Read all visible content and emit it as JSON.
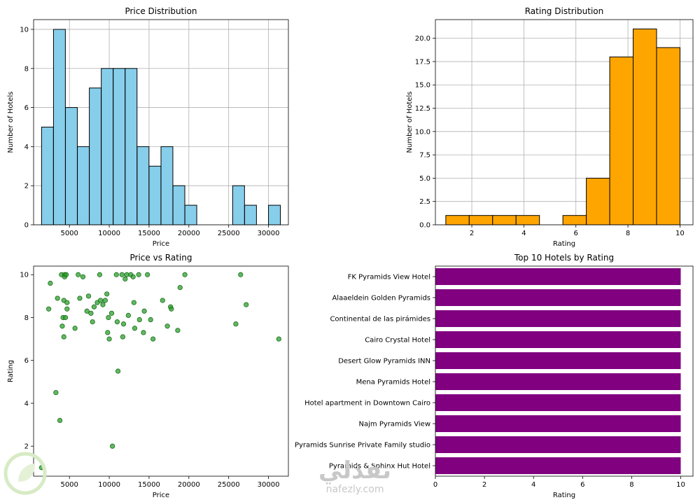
{
  "charts": [
    {
      "id": "price_hist",
      "type": "bar",
      "title": "Price Distribution",
      "xlabel": "Price",
      "ylabel": "Number of Hotels",
      "color": "#87ceeb",
      "xlim": [
        500,
        32500
      ],
      "ylim": [
        0,
        10.5
      ],
      "xticks": [
        5000,
        10000,
        15000,
        20000,
        25000,
        30000
      ],
      "yticks": [
        0,
        2,
        4,
        6,
        8,
        10
      ],
      "bin_width": 1490,
      "bins": [
        {
          "x0": 1500,
          "value": 5
        },
        {
          "x0": 3000,
          "value": 10
        },
        {
          "x0": 4500,
          "value": 6
        },
        {
          "x0": 6000,
          "value": 4
        },
        {
          "x0": 7500,
          "value": 7
        },
        {
          "x0": 9000,
          "value": 8
        },
        {
          "x0": 10500,
          "value": 8
        },
        {
          "x0": 12000,
          "value": 8
        },
        {
          "x0": 13500,
          "value": 4
        },
        {
          "x0": 15000,
          "value": 3
        },
        {
          "x0": 16500,
          "value": 4
        },
        {
          "x0": 18000,
          "value": 2
        },
        {
          "x0": 19500,
          "value": 1
        },
        {
          "x0": 25500,
          "value": 2
        },
        {
          "x0": 27000,
          "value": 1
        },
        {
          "x0": 30000,
          "value": 1
        }
      ]
    },
    {
      "id": "rating_hist",
      "type": "bar",
      "title": "Rating Distribution",
      "xlabel": "Rating",
      "ylabel": "Number of Hotels",
      "color": "#ffa500",
      "xlim": [
        0.6,
        10.5
      ],
      "ylim": [
        0,
        22
      ],
      "xticks": [
        2,
        4,
        6,
        8,
        10
      ],
      "yticks": [
        0.0,
        2.5,
        5.0,
        7.5,
        10.0,
        12.5,
        15.0,
        17.5,
        20.0
      ],
      "ytick_labels": [
        "0.0",
        "2.5",
        "5.0",
        "7.5",
        "10.0",
        "12.5",
        "15.0",
        "17.5",
        "20.0"
      ],
      "bin_width": 0.9,
      "bins": [
        {
          "x0": 1.0,
          "value": 1
        },
        {
          "x0": 1.9,
          "value": 1
        },
        {
          "x0": 2.8,
          "value": 1
        },
        {
          "x0": 3.7,
          "value": 1
        },
        {
          "x0": 4.6,
          "value": 0
        },
        {
          "x0": 5.5,
          "value": 1
        },
        {
          "x0": 6.4,
          "value": 5
        },
        {
          "x0": 7.3,
          "value": 18
        },
        {
          "x0": 8.2,
          "value": 21
        },
        {
          "x0": 9.1,
          "value": 19
        }
      ]
    },
    {
      "id": "price_rating_scatter",
      "type": "scatter",
      "title": "Price vs Rating",
      "xlabel": "Price",
      "ylabel": "Rating",
      "color": "#2ca02c",
      "xlim": [
        500,
        32500
      ],
      "ylim": [
        0.6,
        10.4
      ],
      "xticks": [
        5000,
        10000,
        15000,
        20000,
        25000,
        30000
      ],
      "yticks": [
        2,
        4,
        6,
        8,
        10
      ],
      "points": [
        [
          1500,
          1.0
        ],
        [
          2400,
          8.4
        ],
        [
          2600,
          9.6
        ],
        [
          3300,
          4.5
        ],
        [
          3500,
          8.9
        ],
        [
          3800,
          3.2
        ],
        [
          4000,
          10.0
        ],
        [
          4100,
          7.6
        ],
        [
          4200,
          8.0
        ],
        [
          4300,
          8.8
        ],
        [
          4300,
          7.1
        ],
        [
          4400,
          10.0
        ],
        [
          4400,
          9.9
        ],
        [
          4500,
          8.0
        ],
        [
          4600,
          10.0
        ],
        [
          4700,
          8.4
        ],
        [
          4700,
          8.7
        ],
        [
          5700,
          7.5
        ],
        [
          6100,
          10.0
        ],
        [
          6300,
          8.9
        ],
        [
          6700,
          9.9
        ],
        [
          7200,
          8.3
        ],
        [
          7400,
          9.0
        ],
        [
          7700,
          8.2
        ],
        [
          7900,
          7.8
        ],
        [
          8100,
          8.5
        ],
        [
          8500,
          8.7
        ],
        [
          8800,
          10.0
        ],
        [
          8900,
          8.8
        ],
        [
          9200,
          8.6
        ],
        [
          9500,
          8.8
        ],
        [
          9700,
          9.1
        ],
        [
          9800,
          7.3
        ],
        [
          9900,
          8.0
        ],
        [
          10000,
          7.0
        ],
        [
          10300,
          8.2
        ],
        [
          10400,
          2.0
        ],
        [
          10900,
          10.0
        ],
        [
          11000,
          7.8
        ],
        [
          11100,
          5.5
        ],
        [
          11600,
          10.0
        ],
        [
          11700,
          7.1
        ],
        [
          11800,
          7.7
        ],
        [
          12000,
          9.8
        ],
        [
          12200,
          10.0
        ],
        [
          12400,
          8.1
        ],
        [
          12700,
          10.0
        ],
        [
          13000,
          9.9
        ],
        [
          13100,
          8.7
        ],
        [
          13200,
          7.5
        ],
        [
          13700,
          10.0
        ],
        [
          13800,
          7.9
        ],
        [
          14300,
          7.3
        ],
        [
          14400,
          8.3
        ],
        [
          14800,
          10.0
        ],
        [
          15200,
          7.9
        ],
        [
          15500,
          7.0
        ],
        [
          16700,
          8.8
        ],
        [
          17300,
          7.6
        ],
        [
          17700,
          8.5
        ],
        [
          17800,
          8.4
        ],
        [
          18600,
          7.4
        ],
        [
          18900,
          9.4
        ],
        [
          19500,
          10.0
        ],
        [
          25900,
          7.7
        ],
        [
          26500,
          10.0
        ],
        [
          27200,
          8.6
        ],
        [
          31300,
          7.0
        ]
      ]
    },
    {
      "id": "top10_bar",
      "type": "bar",
      "orientation": "horizontal",
      "title": "Top 10 Hotels by Rating",
      "xlabel": "Rating",
      "color": "#800080",
      "xlim": [
        0,
        10.5
      ],
      "xticks": [
        0,
        2,
        4,
        6,
        8,
        10
      ],
      "categories": [
        "FK Pyramids View Hotel",
        "Alaaeldein Golden Pyramids",
        "Continental de las pirámides",
        "Cairo Crystal Hotel",
        "Desert Glow Pyramids INN",
        "Mena Pyramids Hotel",
        "Hotel apartment in Downtown Cairo",
        "Najm Pyramids View",
        "Pyramids Sunrise Private Family studio",
        "Pyramids & Sphinx Hut Hotel"
      ],
      "values": [
        10,
        10,
        10,
        10,
        10,
        10,
        10,
        10,
        10,
        10
      ]
    }
  ],
  "watermark": {
    "arabic": "نفذلي",
    "url": "nafezly.com",
    "logo_color": "#9ccc65"
  }
}
